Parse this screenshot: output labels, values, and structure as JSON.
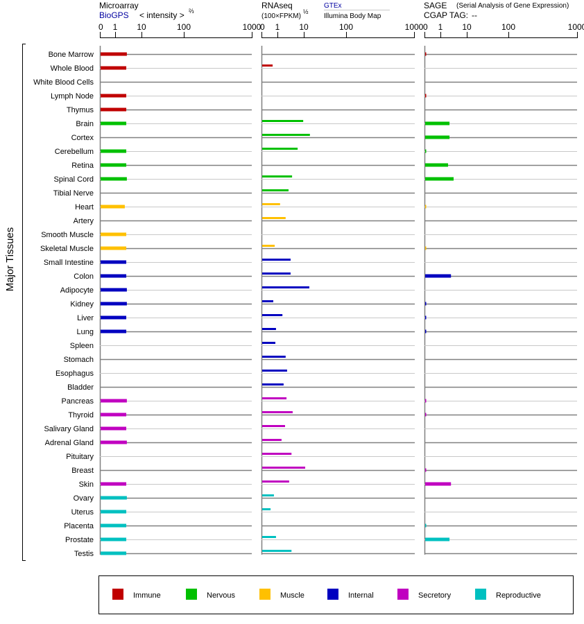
{
  "chart_data": {
    "type": "bar",
    "orientation": "horizontal",
    "y_axis_label": "Major Tissues",
    "tick_labels": [
      "0",
      "1",
      "10",
      "100",
      "1000"
    ],
    "ticks": [
      0,
      1,
      10,
      100,
      1000
    ],
    "xlim": [
      0,
      1000
    ],
    "grid": true,
    "legend_placement": "bottom",
    "panels": [
      {
        "key": "microarray",
        "title": "Microarray",
        "source": "BioGPS",
        "unit": "< intensity >",
        "unit_exp": "⅔"
      },
      {
        "key": "rnaseq",
        "title": "RNAseq",
        "unit": "(100×FPKM)",
        "unit_exp": "½",
        "source": "GTEx",
        "source2": "Illumina Body Map"
      },
      {
        "key": "sage",
        "title": "SAGE",
        "subtitle": "(Serial Analysis of Gene Expression)",
        "tag_label": "CGAP TAG:",
        "tag_value": "--"
      }
    ],
    "groups": [
      {
        "key": "immune",
        "label": "Immune",
        "color": "#c00000"
      },
      {
        "key": "nervous",
        "label": "Nervous",
        "color": "#00c000"
      },
      {
        "key": "muscle",
        "label": "Muscle",
        "color": "#ffc000"
      },
      {
        "key": "internal",
        "label": "Internal",
        "color": "#0000c0"
      },
      {
        "key": "secretory",
        "label": "Secretory",
        "color": "#c000c0"
      },
      {
        "key": "reproductive",
        "label": "Reproductive",
        "color": "#00c0c0"
      }
    ],
    "tissues": [
      {
        "name": "Bone Marrow",
        "group": "immune",
        "microarray": 5.0,
        "rnaseq": null,
        "sage": 0.05
      },
      {
        "name": "Whole Blood",
        "group": "immune",
        "microarray": 4.8,
        "rnaseq": 0.7,
        "sage": null
      },
      {
        "name": "White Blood Cells",
        "group": "immune",
        "microarray": null,
        "rnaseq": null,
        "sage": null
      },
      {
        "name": "Lymph Node",
        "group": "immune",
        "microarray": 4.8,
        "rnaseq": null,
        "sage": 0.05
      },
      {
        "name": "Thymus",
        "group": "immune",
        "microarray": 4.8,
        "rnaseq": null,
        "sage": null
      },
      {
        "name": "Brain",
        "group": "nervous",
        "microarray": 4.8,
        "rnaseq": 9.8,
        "sage": 4.1
      },
      {
        "name": "Cortex",
        "group": "nervous",
        "microarray": null,
        "rnaseq": 23,
        "sage": 4.1
      },
      {
        "name": "Cerebellum",
        "group": "nervous",
        "microarray": 4.8,
        "rnaseq": 7.9,
        "sage": 0.05
      },
      {
        "name": "Retina",
        "group": "nervous",
        "microarray": 4.8,
        "rnaseq": null,
        "sage": 3.6
      },
      {
        "name": "Spinal Cord",
        "group": "nervous",
        "microarray": 5.0,
        "rnaseq": 6.0,
        "sage": 5.5
      },
      {
        "name": "Tibial Nerve",
        "group": "nervous",
        "microarray": null,
        "rnaseq": 4.8,
        "sage": null
      },
      {
        "name": "Heart",
        "group": "muscle",
        "microarray": 4.3,
        "rnaseq": 1.9,
        "sage": 0.05
      },
      {
        "name": "Artery",
        "group": "muscle",
        "microarray": null,
        "rnaseq": 3.8,
        "sage": null
      },
      {
        "name": "Smooth Muscle",
        "group": "muscle",
        "microarray": 4.8,
        "rnaseq": null,
        "sage": null
      },
      {
        "name": "Skeletal Muscle",
        "group": "muscle",
        "microarray": 4.8,
        "rnaseq": 0.83,
        "sage": 0.05
      },
      {
        "name": "Small Intestine",
        "group": "internal",
        "microarray": 4.8,
        "rnaseq": 5.5,
        "sage": null
      },
      {
        "name": "Colon",
        "group": "internal",
        "microarray": 4.8,
        "rnaseq": 5.5,
        "sage": 4.6
      },
      {
        "name": "Adipocyte",
        "group": "internal",
        "microarray": 5.0,
        "rnaseq": 21.8,
        "sage": null
      },
      {
        "name": "Kidney",
        "group": "internal",
        "microarray": 5.0,
        "rnaseq": 0.74,
        "sage": 0.05
      },
      {
        "name": "Liver",
        "group": "internal",
        "microarray": 4.8,
        "rnaseq": 2.7,
        "sage": 0.05
      },
      {
        "name": "Lung",
        "group": "internal",
        "microarray": 4.8,
        "rnaseq": 0.91,
        "sage": 0.05
      },
      {
        "name": "Spleen",
        "group": "internal",
        "microarray": null,
        "rnaseq": 0.87,
        "sage": null
      },
      {
        "name": "Stomach",
        "group": "internal",
        "microarray": null,
        "rnaseq": 3.8,
        "sage": null
      },
      {
        "name": "Esophagus",
        "group": "internal",
        "microarray": null,
        "rnaseq": 4.3,
        "sage": null
      },
      {
        "name": "Bladder",
        "group": "internal",
        "microarray": null,
        "rnaseq": 3.1,
        "sage": null
      },
      {
        "name": "Pancreas",
        "group": "secretory",
        "microarray": 5.0,
        "rnaseq": 4.1,
        "sage": 0.05
      },
      {
        "name": "Thyroid",
        "group": "secretory",
        "microarray": 4.8,
        "rnaseq": 6.2,
        "sage": 0.05
      },
      {
        "name": "Salivary Gland",
        "group": "secretory",
        "microarray": 4.8,
        "rnaseq": 3.6,
        "sage": null
      },
      {
        "name": "Adrenal Gland",
        "group": "secretory",
        "microarray": 5.0,
        "rnaseq": 2.4,
        "sage": null
      },
      {
        "name": "Pituitary",
        "group": "secretory",
        "microarray": null,
        "rnaseq": 5.8,
        "sage": null
      },
      {
        "name": "Breast",
        "group": "secretory",
        "microarray": null,
        "rnaseq": 13,
        "sage": 0.05
      },
      {
        "name": "Skin",
        "group": "secretory",
        "microarray": 4.8,
        "rnaseq": 5.0,
        "sage": 4.6
      },
      {
        "name": "Ovary",
        "group": "reproductive",
        "microarray": 5.0,
        "rnaseq": 0.78,
        "sage": null
      },
      {
        "name": "Uterus",
        "group": "reproductive",
        "microarray": 4.8,
        "rnaseq": 0.57,
        "sage": null
      },
      {
        "name": "Placenta",
        "group": "reproductive",
        "microarray": 4.8,
        "rnaseq": null,
        "sage": 0.05
      },
      {
        "name": "Prostate",
        "group": "reproductive",
        "microarray": 4.8,
        "rnaseq": 0.91,
        "sage": 4.1
      },
      {
        "name": "Testis",
        "group": "reproductive",
        "microarray": 4.8,
        "rnaseq": 5.8,
        "sage": null
      }
    ]
  }
}
